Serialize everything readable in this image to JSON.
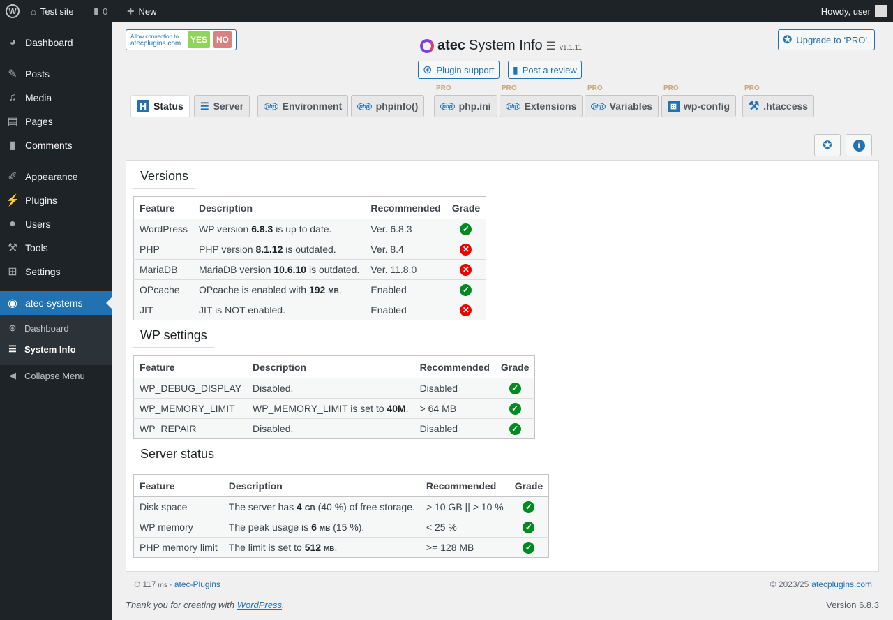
{
  "adminbar": {
    "site": "Test site",
    "comments": "0",
    "new": "New",
    "howdy": "Howdy, user"
  },
  "sidebar": {
    "items": [
      "Dashboard",
      "Posts",
      "Media",
      "Pages",
      "Comments",
      "Appearance",
      "Plugins",
      "Users",
      "Tools",
      "Settings",
      "atec-systems"
    ],
    "sub": [
      "Dashboard",
      "System Info"
    ],
    "collapse": "Collapse Menu"
  },
  "header": {
    "allow_line1": "Allow connection to",
    "allow_line2": "atecplugins.com",
    "yes": "YES",
    "no": "NO",
    "brand": "atec",
    "title": "System Info",
    "version": "v1.1.11",
    "support": "Plugin support",
    "review": "Post a review",
    "upgrade": "Upgrade to ‘PRO’."
  },
  "tabs": [
    {
      "label": "Status",
      "pro": ""
    },
    {
      "label": "Server",
      "pro": ""
    },
    {
      "label": "Environment",
      "pro": ""
    },
    {
      "label": "phpinfo()",
      "pro": ""
    },
    {
      "label": "php.ini",
      "pro": "PRO"
    },
    {
      "label": "Extensions",
      "pro": "PRO"
    },
    {
      "label": "Variables",
      "pro": "PRO"
    },
    {
      "label": "wp-config",
      "pro": "PRO"
    },
    {
      "label": ".htaccess",
      "pro": "PRO"
    }
  ],
  "sections": [
    {
      "title": "Versions",
      "headers": [
        "Feature",
        "Description",
        "Recommended",
        "Grade"
      ],
      "rows": [
        {
          "feature": "WordPress",
          "pre": "WP version ",
          "bold": "6.8.3",
          "unit": "",
          "post": " is up to date.",
          "rec": "Ver. 6.8.3",
          "ok": true
        },
        {
          "feature": "PHP",
          "pre": "PHP version ",
          "bold": "8.1.12",
          "unit": "",
          "post": " is outdated.",
          "rec": "Ver. 8.4",
          "ok": false
        },
        {
          "feature": "MariaDB",
          "pre": "MariaDB version ",
          "bold": "10.6.10",
          "unit": "",
          "post": " is outdated.",
          "rec": "Ver. 11.8.0",
          "ok": false
        },
        {
          "feature": "OPcache",
          "pre": "OPcache is enabled with ",
          "bold": "192",
          "unit": "MB",
          "post": ".",
          "rec": "Enabled",
          "ok": true
        },
        {
          "feature": "JIT",
          "pre": "JIT is NOT enabled.",
          "bold": "",
          "unit": "",
          "post": "",
          "rec": "Enabled",
          "ok": false
        }
      ]
    },
    {
      "title": "WP settings",
      "headers": [
        "Feature",
        "Description",
        "Recommended",
        "Grade"
      ],
      "rows": [
        {
          "feature": "WP_DEBUG_DISPLAY",
          "pre": "Disabled.",
          "bold": "",
          "unit": "",
          "post": "",
          "rec": "Disabled",
          "ok": true
        },
        {
          "feature": "WP_MEMORY_LIMIT",
          "pre": "WP_MEMORY_LIMIT is set to ",
          "bold": "40M",
          "unit": "",
          "post": ".",
          "rec": "> 64 MB",
          "ok": true
        },
        {
          "feature": "WP_REPAIR",
          "pre": "Disabled.",
          "bold": "",
          "unit": "",
          "post": "",
          "rec": "Disabled",
          "ok": true
        }
      ]
    },
    {
      "title": "Server status",
      "headers": [
        "Feature",
        "Description",
        "Recommended",
        "Grade"
      ],
      "rows": [
        {
          "feature": "Disk space",
          "pre": "The server has ",
          "bold": "4",
          "unit": "GB",
          "post": " (40 %) of free storage.",
          "rec": "> 10 GB || > 10 %",
          "ok": true
        },
        {
          "feature": "WP memory",
          "pre": "The peak usage is ",
          "bold": "6",
          "unit": "MB",
          "post": " (15 %).",
          "rec": "< 25 %",
          "ok": true
        },
        {
          "feature": "PHP memory limit",
          "pre": "The limit is set to ",
          "bold": "512",
          "unit": "MB",
          "post": ".",
          "rec": ">= 128 MB",
          "ok": true
        }
      ]
    }
  ],
  "footer": {
    "ms": "117",
    "ms_unit": "ms",
    "sep": "·",
    "plugins_link": "atec-Plugins",
    "copyright": "© 2023/25",
    "site_link": "atecplugins.com",
    "thanks": "Thank you for creating with ",
    "wp_link": "WordPress",
    "dot": ".",
    "version": "Version 6.8.3"
  },
  "colors": {
    "accent": "#2271b1",
    "ok": "#008a20",
    "bad": "#e00000",
    "yes": "#7ad03a",
    "no": "#d98080"
  }
}
